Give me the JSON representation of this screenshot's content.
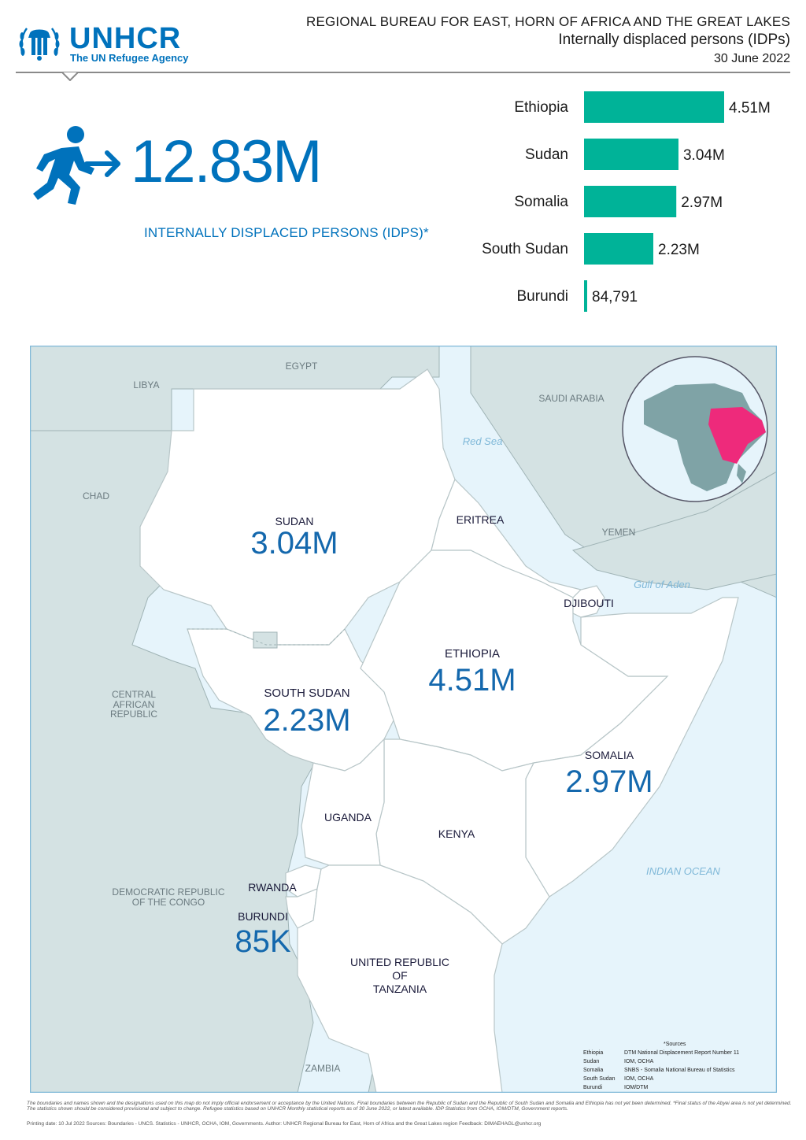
{
  "header": {
    "logo_name": "UNHCR",
    "logo_tagline": "The UN Refugee Agency",
    "bureau": "REGIONAL BUREAU FOR EAST, HORN OF AFRICA AND THE GREAT LAKES",
    "subtitle": "Internally displaced persons (IDPs)",
    "date": "30 June 2022"
  },
  "colors": {
    "brand": "#0072bc",
    "bar": "#00b398",
    "highlight": "#ee2a7b",
    "water": "#e6f4fb",
    "neighbor": "#d4e2e3"
  },
  "hero": {
    "value": "12.83M",
    "label": "INTERNALLY DISPLACED PERSONS (IDPS)*",
    "icon": "person-walking-arrow-icon"
  },
  "chart_data": {
    "type": "bar",
    "orientation": "horizontal",
    "categories": [
      "Ethiopia",
      "Sudan",
      "Somalia",
      "South Sudan",
      "Burundi"
    ],
    "values": [
      4510000,
      3040000,
      2970000,
      2230000,
      84791
    ],
    "value_labels": [
      "4.51M",
      "3.04M",
      "2.97M",
      "2.23M",
      "84,791"
    ],
    "grid": false,
    "legend": "none"
  },
  "map": {
    "countries": [
      {
        "name": "SUDAN",
        "value": "3.04M"
      },
      {
        "name": "SOUTH SUDAN",
        "value": "2.23M"
      },
      {
        "name": "ETHIOPIA",
        "value": "4.51M"
      },
      {
        "name": "SOMALIA",
        "value": "2.97M"
      },
      {
        "name": "BURUNDI",
        "value": "85K"
      },
      {
        "name": "ERITREA",
        "value": ""
      },
      {
        "name": "DJIBOUTI",
        "value": ""
      },
      {
        "name": "UGANDA",
        "value": ""
      },
      {
        "name": "KENYA",
        "value": ""
      },
      {
        "name": "RWANDA",
        "value": ""
      },
      {
        "name_lines": [
          "UNITED REPUBLIC",
          "OF",
          "TANZANIA"
        ],
        "value": ""
      }
    ],
    "neighbors": [
      "EGYPT",
      "LIBYA",
      "CHAD",
      "SAUDI ARABIA",
      "YEMEN",
      "ZAMBIA"
    ],
    "neighbor_multiline": {
      "car": [
        "CENTRAL",
        "AFRICAN",
        "REPUBLIC"
      ],
      "drc": [
        "DEMOCRATIC REPUBLIC",
        "OF THE CONGO"
      ]
    },
    "water": [
      "Red Sea",
      "Gulf of Aden",
      "INDIAN OCEAN"
    ],
    "sources": {
      "title": "*Sources",
      "rows": [
        {
          "country": "Ethiopia",
          "source": "DTM National Displacement Report Number 11"
        },
        {
          "country": "Sudan",
          "source": "IOM, OCHA"
        },
        {
          "country": "Somalia",
          "source": "SNBS - Somalia National Bureau of Statistics"
        },
        {
          "country": "South Sudan",
          "source": "IOM, OCHA"
        },
        {
          "country": "Burundi",
          "source": "IOM/DTM"
        }
      ]
    }
  },
  "footer": {
    "disclaimer": "The boundaries and names shown and the designations used on this map do not imply official endorsement or acceptance by the United Nations. Final boundaries between the Republic of Sudan and the Republic of South Sudan and Somalia and Ethiopia has not yet been determined. *Final status of the Abyei area is not yet determined. The statistics shown should be considered provisional and subject to change. Refugee statistics based on UNHCR Monthly statistical reports as of 30 June 2022, or latest available. IDP Statistics from OCHA, IOM/DTM, Government reports.",
    "print_line": "Printing date: 10 Jul 2022     Sources:  Boundaries - UNCS. Statistics - UNHCR, OCHA, IOM, Governments.     Author: UNHCR Regional Bureau for East, Horn of Africa and the Great Lakes region     Feedback: DIMAEHAGL@unhcr.org"
  }
}
